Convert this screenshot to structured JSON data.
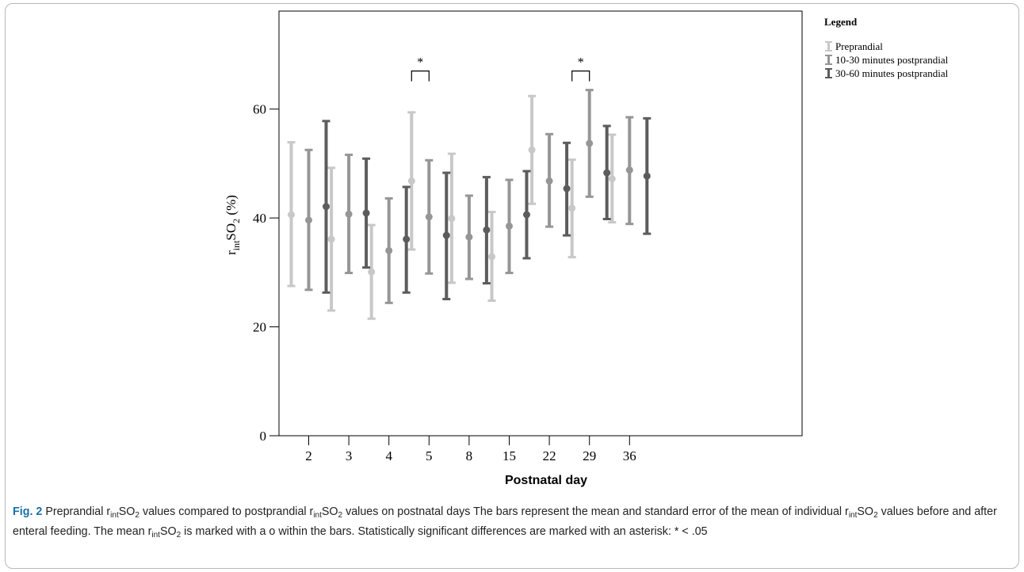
{
  "legend": {
    "title": "Legend",
    "items": [
      {
        "label": "Preprandial",
        "color": "#c8c8c8"
      },
      {
        "label": "10-30 minutes postprandial",
        "color": "#969696"
      },
      {
        "label": "30-60 minutes postprandial",
        "color": "#5c5c5c"
      }
    ]
  },
  "caption": {
    "fig_label": "Fig. 2",
    "p1": " Preprandial r",
    "p2": "SO",
    "p3": " values compared to postprandial r",
    "p4": "SO",
    "p5": " values on postnatal days The bars represent the mean and standard error of the mean of individual r",
    "p6": "SO",
    "p7": " values before and after enteral feeding. The mean r",
    "p8": "SO",
    "p9": " is marked with a o within the bars. Statistically significant differences are marked with an asterisk: * < .05",
    "sub_int": "int",
    "sub_2": "2"
  },
  "chart_data": {
    "type": "errorbar",
    "title": "",
    "xlabel": "Postnatal day",
    "ylabel_main": "r",
    "ylabel_sub": "int",
    "ylabel_rest": "SO",
    "ylabel_sub2": "2",
    "ylabel_unit": " (%)",
    "ylim": [
      0,
      78
    ],
    "yticks": [
      0,
      20,
      40,
      60
    ],
    "categories": [
      "2",
      "3",
      "4",
      "5",
      "8",
      "15",
      "22",
      "29",
      "36"
    ],
    "series": [
      {
        "name": "Preprandial",
        "color": "#c8c8c8",
        "mean": [
          40.6,
          36.1,
          30.1,
          46.8,
          39.9,
          32.9,
          52.5,
          41.8,
          47.2
        ],
        "lower": [
          27.5,
          23.0,
          21.5,
          34.2,
          28.1,
          24.8,
          42.6,
          32.8,
          39.2
        ],
        "upper": [
          53.9,
          49.2,
          38.7,
          59.4,
          51.8,
          41.1,
          62.4,
          50.7,
          55.3
        ]
      },
      {
        "name": "10-30 minutes postprandial",
        "color": "#969696",
        "mean": [
          39.6,
          40.7,
          34.0,
          40.2,
          36.5,
          38.5,
          46.8,
          53.7,
          48.8
        ],
        "lower": [
          26.8,
          29.9,
          24.4,
          29.8,
          28.8,
          29.9,
          38.4,
          43.9,
          38.9
        ],
        "upper": [
          52.5,
          51.6,
          43.6,
          50.6,
          44.1,
          47.0,
          55.4,
          63.5,
          58.5
        ]
      },
      {
        "name": "30-60 minutes postprandial",
        "color": "#5c5c5c",
        "mean": [
          42.1,
          40.9,
          36.1,
          36.8,
          37.8,
          40.6,
          45.4,
          48.3,
          47.7
        ],
        "lower": [
          26.3,
          30.9,
          26.3,
          25.1,
          28.0,
          32.6,
          36.8,
          39.8,
          37.1
        ],
        "upper": [
          57.8,
          50.9,
          45.7,
          48.3,
          47.5,
          48.6,
          53.8,
          56.9,
          58.3
        ]
      }
    ],
    "annotations": [
      {
        "text": "*",
        "category": "5",
        "from_series": 0,
        "to_series": 1,
        "level": 67
      },
      {
        "text": "*",
        "category": "29",
        "from_series": 0,
        "to_series": 1,
        "level": 67
      }
    ]
  }
}
